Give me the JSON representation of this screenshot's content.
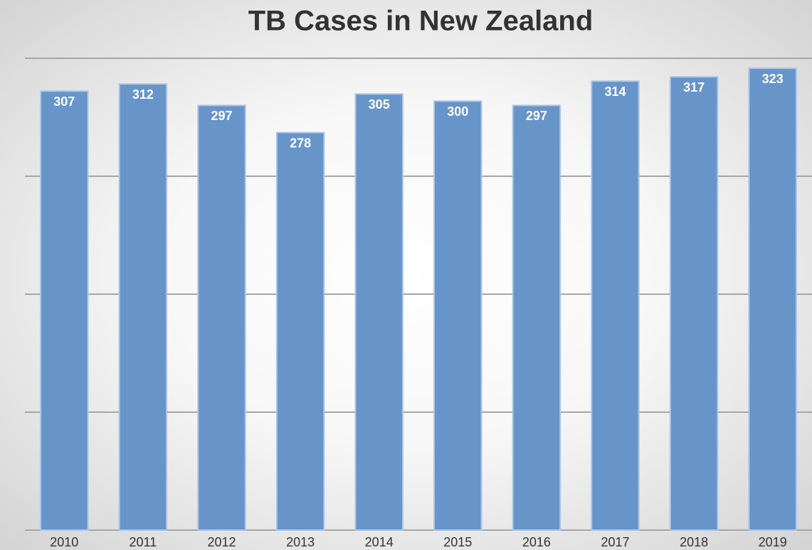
{
  "chart_data": {
    "type": "bar",
    "title": "TB Cases in New Zealand",
    "categories": [
      "2010",
      "2011",
      "2012",
      "2013",
      "2014",
      "2015",
      "2016",
      "2017",
      "2018",
      "2019"
    ],
    "values": [
      307,
      312,
      297,
      278,
      305,
      300,
      297,
      314,
      317,
      323
    ],
    "color": "#6794c9",
    "ylim": [
      0,
      330
    ],
    "yticks": [
      0,
      82.5,
      165,
      247.5,
      330
    ],
    "grid": true
  }
}
